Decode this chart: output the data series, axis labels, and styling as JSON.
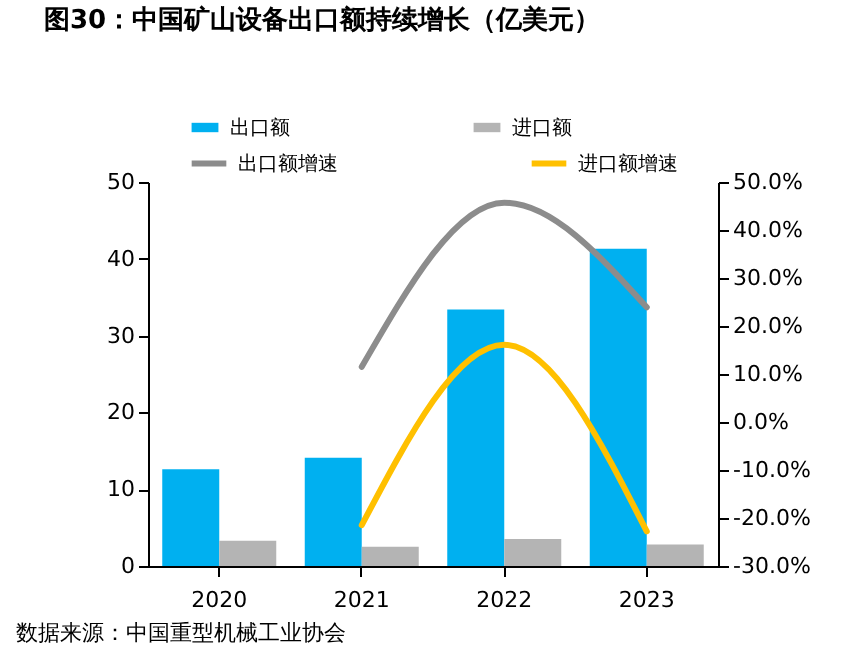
{
  "chart_data": {
    "type": "bar",
    "title": "图30：中国矿山设备出口额持续增长（亿美元）",
    "categories": [
      "2020",
      "2021",
      "2022",
      "2023"
    ],
    "series": [
      {
        "name": "出口额",
        "color": "#00b0f0",
        "values": [
          12.6,
          14.1,
          33.4,
          41.3
        ]
      },
      {
        "name": "进口额",
        "color": "#b4b4b4",
        "values": [
          3.3,
          2.5,
          3.5,
          2.8
        ]
      },
      {
        "name": "出口额增速",
        "type": "line",
        "axis": "y2",
        "color": "#8c8c8c",
        "values": [
          null,
          11.5,
          45.7,
          23.9
        ]
      },
      {
        "name": "进口额增速",
        "type": "line",
        "axis": "y2",
        "color": "#ffc000",
        "values": [
          null,
          -21.5,
          16.1,
          -22.8
        ]
      }
    ],
    "ylim": [
      0,
      50
    ],
    "yticks": [
      0,
      10,
      20,
      30,
      40,
      50
    ],
    "y2lim": [
      -30,
      50
    ],
    "y2ticks": [
      {
        "value": 50,
        "label": "50.0%"
      },
      {
        "value": 40,
        "label": "40.0%"
      },
      {
        "value": 30,
        "label": "30.0%"
      },
      {
        "value": 20,
        "label": "20.0%"
      },
      {
        "value": 10,
        "label": "10.0%"
      },
      {
        "value": 0,
        "label": "0.0%"
      },
      {
        "value": -10,
        "label": "-10.0%"
      },
      {
        "value": -20,
        "label": "-20.0%"
      },
      {
        "value": -30,
        "label": "-30.0%"
      }
    ],
    "legend": "top",
    "grid": false,
    "annotations": [
      "数据来源：中国重型机械工业协会"
    ]
  }
}
